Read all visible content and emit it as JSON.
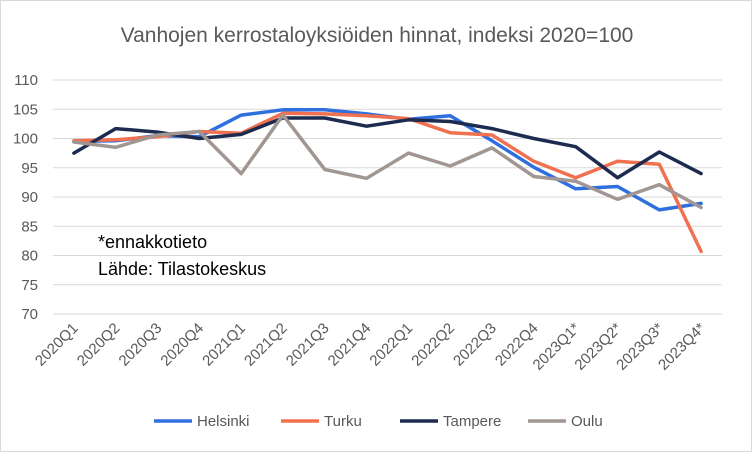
{
  "chart_data": {
    "type": "line",
    "title": "Vanhojen kerrostaloyksiöiden hinnat, indeksi 2020=100",
    "xlabel": "",
    "ylabel": "",
    "ylim": [
      70,
      110
    ],
    "yticks": [
      70,
      75,
      80,
      85,
      90,
      95,
      100,
      105,
      110
    ],
    "grid": "horizontal",
    "legend": "bottom",
    "categories": [
      "2020Q1",
      "2020Q2",
      "2020Q3",
      "2020Q4",
      "2021Q1",
      "2021Q2",
      "2021Q3",
      "2021Q4",
      "2022Q1",
      "2022Q2",
      "2022Q3",
      "2022Q4",
      "2023Q1*",
      "2023Q2*",
      "2023Q3*",
      "2023Q4*"
    ],
    "series": [
      {
        "name": "Helsinki",
        "color": "#2f6fde",
        "values": [
          99.5,
          99.6,
          100.5,
          100.3,
          104.0,
          104.9,
          104.9,
          104.2,
          103.3,
          103.9,
          99.6,
          95.1,
          91.4,
          91.8,
          87.8,
          88.9
        ]
      },
      {
        "name": "Turku",
        "color": "#f0704f",
        "values": [
          99.6,
          99.8,
          100.3,
          101.2,
          100.9,
          104.3,
          104.2,
          103.9,
          103.4,
          101.0,
          100.6,
          96.1,
          93.3,
          96.1,
          95.6,
          80.7
        ]
      },
      {
        "name": "Tampere",
        "color": "#1c2b4f",
        "values": [
          97.5,
          101.7,
          101.1,
          100.0,
          100.7,
          103.5,
          103.5,
          102.1,
          103.2,
          102.9,
          101.7,
          100.0,
          98.6,
          93.3,
          97.7,
          94.0
        ]
      },
      {
        "name": "Oulu",
        "color": "#a19692",
        "values": [
          99.4,
          98.5,
          100.6,
          101.2,
          94.0,
          104.0,
          94.7,
          93.2,
          97.5,
          95.3,
          98.4,
          93.5,
          92.7,
          89.6,
          92.1,
          88.2
        ]
      }
    ],
    "annotations": [
      "*ennakkotieto",
      "Lähde: Tilastokeskus"
    ]
  }
}
